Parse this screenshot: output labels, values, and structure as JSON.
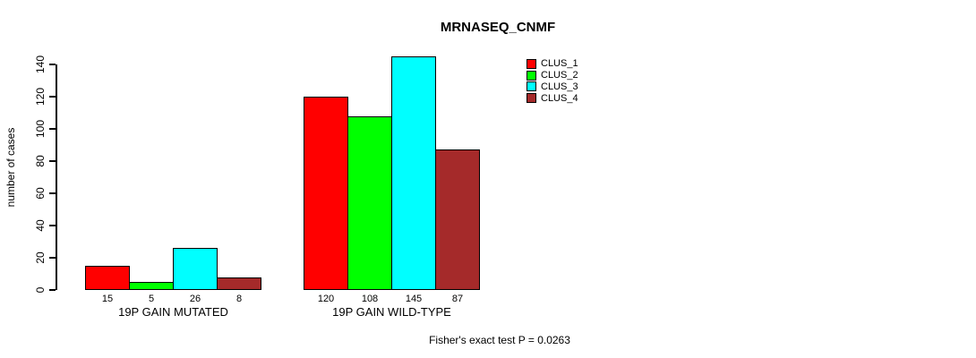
{
  "chart_data": {
    "type": "bar",
    "title": "MRNASEQ_CNMF",
    "ylabel": "number of cases",
    "xlabel": "",
    "ylim": [
      0,
      140
    ],
    "yticks": [
      0,
      20,
      40,
      60,
      80,
      100,
      120,
      140
    ],
    "grid": false,
    "legend_position": "top-right",
    "categories": [
      "19P GAIN MUTATED",
      "19P GAIN WILD-TYPE"
    ],
    "series": [
      {
        "name": "CLUS_1",
        "color": "#ff0000",
        "values": [
          15,
          120
        ]
      },
      {
        "name": "CLUS_2",
        "color": "#00ff00",
        "values": [
          5,
          108
        ]
      },
      {
        "name": "CLUS_3",
        "color": "#00ffff",
        "values": [
          26,
          145
        ]
      },
      {
        "name": "CLUS_4",
        "color": "#a52a2a",
        "values": [
          8,
          87
        ]
      }
    ],
    "bar_value_labels": true,
    "annotation": "Fisher's exact test P = 0.0263"
  }
}
